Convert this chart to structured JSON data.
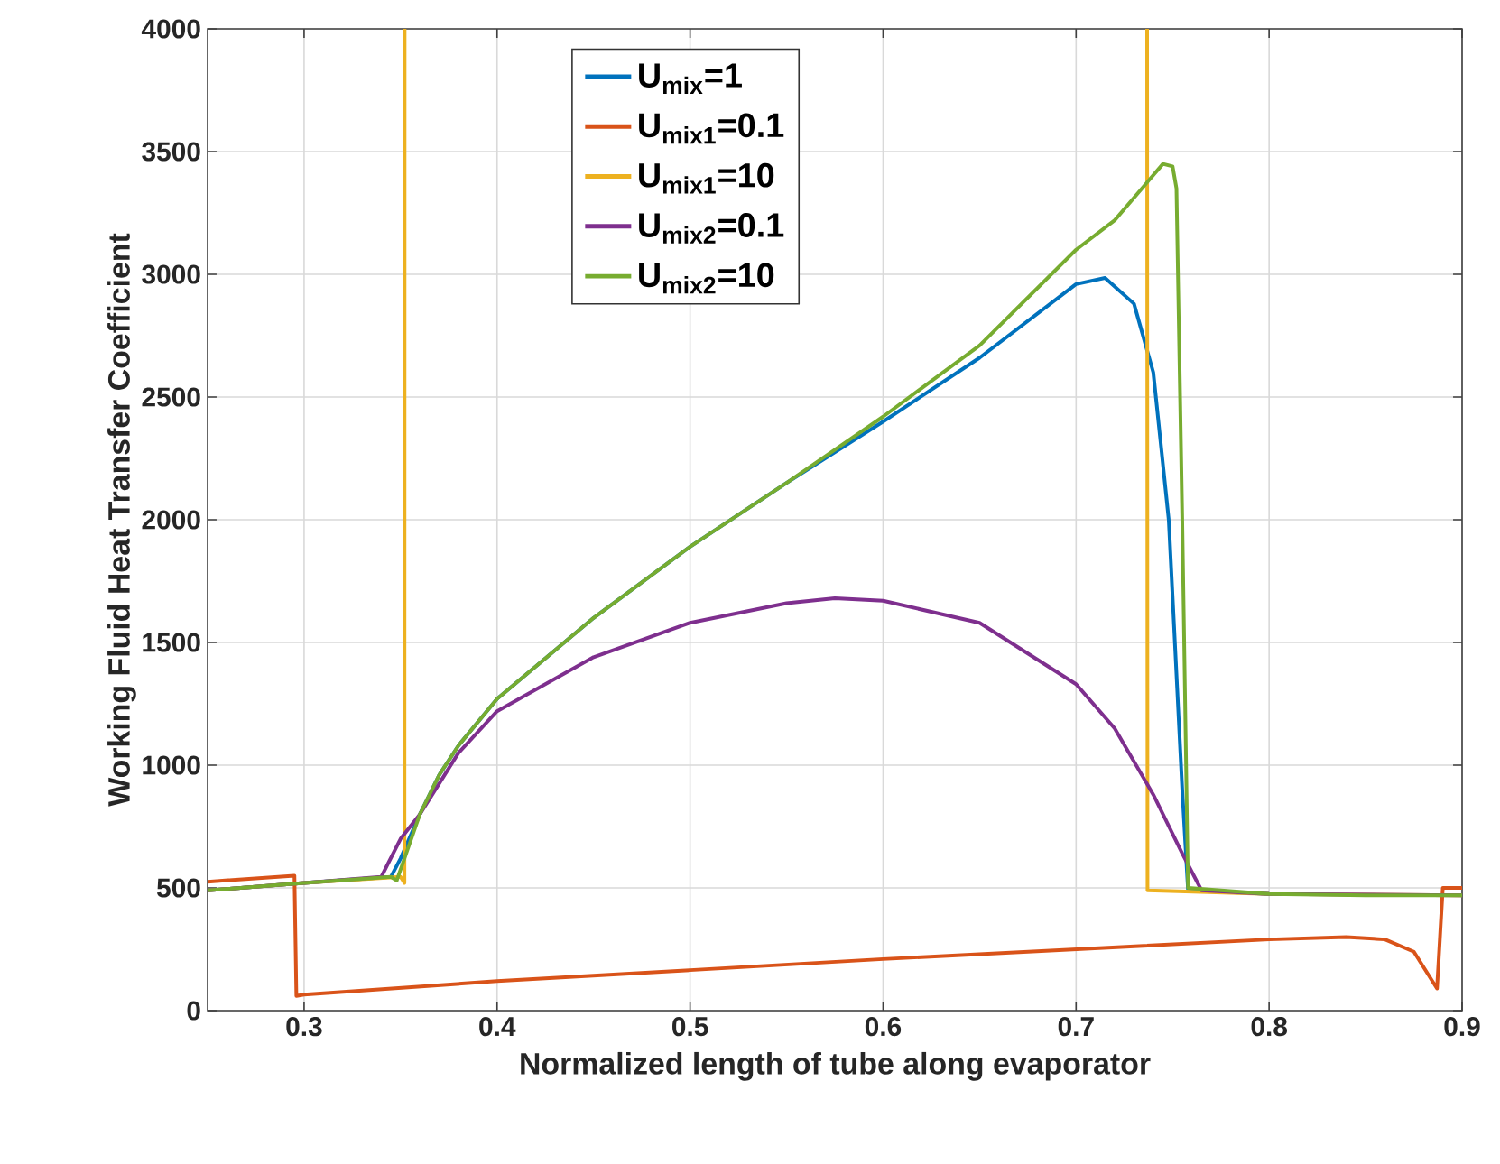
{
  "chart_data": {
    "type": "line",
    "xlabel": "Normalized length of tube along evaporator",
    "ylabel": "Working Fluid Heat Transfer Coefficient",
    "xlim": [
      0.25,
      0.9
    ],
    "ylim": [
      0,
      4000
    ],
    "xticks": [
      0.3,
      0.4,
      0.5,
      0.6,
      0.7,
      0.8,
      0.9
    ],
    "yticks": [
      0,
      500,
      1000,
      1500,
      2000,
      2500,
      3000,
      3500,
      4000
    ],
    "grid": true,
    "legend": "top left",
    "line_style": "solid",
    "series": [
      {
        "name": "U$_{mix}$=1",
        "color": "#0072bd",
        "x": [
          0.25,
          0.3,
          0.345,
          0.35,
          0.36,
          0.37,
          0.38,
          0.4,
          0.45,
          0.5,
          0.55,
          0.6,
          0.65,
          0.7,
          0.715,
          0.73,
          0.74,
          0.748,
          0.755,
          0.758,
          0.8
        ],
        "values": [
          490,
          520,
          545,
          620,
          800,
          960,
          1080,
          1270,
          1600,
          1890,
          2150,
          2400,
          2660,
          2960,
          2985,
          2880,
          2600,
          2000,
          900,
          490,
          475
        ]
      },
      {
        "name": "U$_{mix1}$=0.1",
        "color": "#d95319",
        "x": [
          0.25,
          0.295,
          0.296,
          0.3,
          0.4,
          0.5,
          0.6,
          0.7,
          0.8,
          0.84,
          0.86,
          0.875,
          0.887,
          0.89,
          0.9
        ],
        "values": [
          525,
          550,
          60,
          65,
          120,
          165,
          210,
          250,
          290,
          300,
          290,
          240,
          90,
          500,
          500
        ]
      },
      {
        "name": "U$_{mix1}$=10",
        "color": "#edb120",
        "x": [
          0.25,
          0.3,
          0.35,
          0.352,
          0.3521,
          0.3522,
          0.7368,
          0.737,
          0.8,
          0.9
        ],
        "values": [
          490,
          520,
          545,
          520,
          4000,
          null,
          4000,
          490,
          475,
          470
        ]
      },
      {
        "name": "U$_{mix2}$=0.1",
        "color": "#7e2f8e",
        "x": [
          0.25,
          0.3,
          0.34,
          0.35,
          0.36,
          0.38,
          0.4,
          0.45,
          0.5,
          0.55,
          0.575,
          0.6,
          0.65,
          0.7,
          0.72,
          0.74,
          0.755,
          0.765,
          0.8,
          0.9
        ],
        "values": [
          490,
          520,
          545,
          700,
          800,
          1050,
          1220,
          1440,
          1580,
          1660,
          1680,
          1670,
          1580,
          1330,
          1150,
          880,
          640,
          490,
          475,
          470
        ]
      },
      {
        "name": "U$_{mix2}$=10",
        "color": "#77ac30",
        "x": [
          0.25,
          0.3,
          0.345,
          0.348,
          0.36,
          0.37,
          0.38,
          0.4,
          0.45,
          0.5,
          0.55,
          0.6,
          0.65,
          0.7,
          0.72,
          0.745,
          0.75,
          0.752,
          0.755,
          0.758,
          0.8,
          0.85,
          0.9
        ],
        "values": [
          490,
          520,
          545,
          530,
          800,
          960,
          1080,
          1270,
          1600,
          1890,
          2150,
          2420,
          2710,
          3100,
          3220,
          3450,
          3440,
          3350,
          2000,
          500,
          475,
          470,
          470
        ]
      }
    ]
  }
}
